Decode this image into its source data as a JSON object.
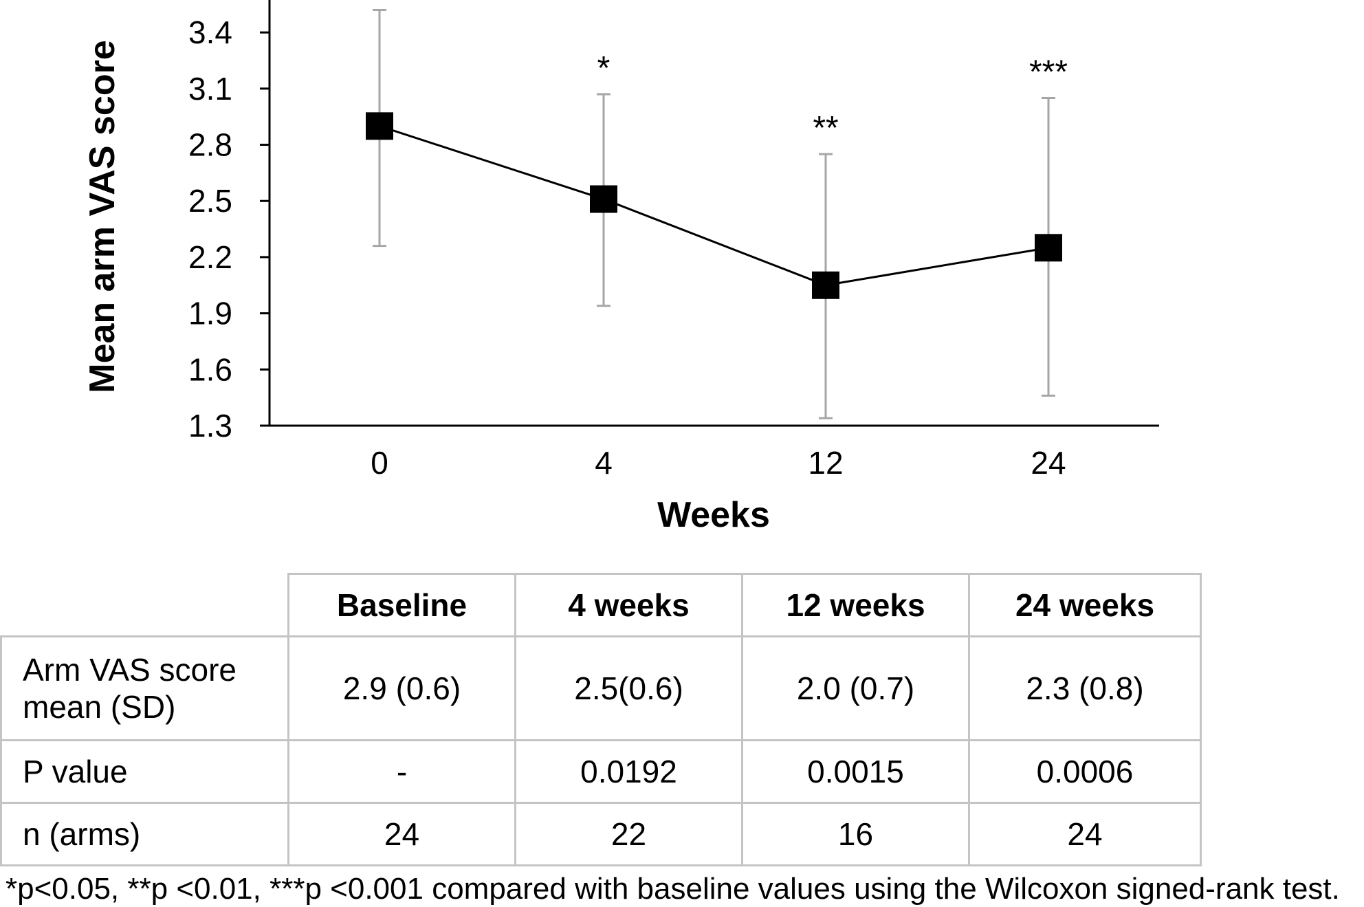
{
  "chart_data": {
    "type": "line",
    "title": "",
    "xlabel": "Weeks",
    "ylabel": "Mean arm VAS score",
    "categories": [
      "0",
      "4",
      "12",
      "24"
    ],
    "ylim": [
      1.3,
      3.55
    ],
    "yticks": [
      "1.3",
      "1.6",
      "1.9",
      "2.2",
      "2.5",
      "2.8",
      "3.1",
      "3.4"
    ],
    "series": [
      {
        "values": [
          2.9,
          2.51,
          2.05,
          2.25
        ],
        "error_low": [
          2.26,
          1.94,
          1.34,
          1.46
        ],
        "error_high": [
          3.52,
          3.07,
          2.75,
          3.05
        ],
        "annotations": [
          "",
          "*",
          "**",
          "***"
        ]
      }
    ],
    "grid": false,
    "colors": {
      "line": "#000000",
      "marker": "#000000",
      "error_bar": "#a6a6a6"
    }
  },
  "table": {
    "headers": [
      "",
      "Baseline",
      "4 weeks",
      "12 weeks",
      "24 weeks"
    ],
    "rows": [
      {
        "label_line1": "Arm VAS score",
        "label_line2": "mean (SD)",
        "cells": [
          "2.9 (0.6)",
          "2.5(0.6)",
          "2.0 (0.7)",
          "2.3 (0.8)"
        ]
      },
      {
        "label_line1": "P value",
        "label_line2": "",
        "cells": [
          "-",
          "0.0192",
          "0.0015",
          "0.0006"
        ]
      },
      {
        "label_line1": "n (arms)",
        "label_line2": "",
        "cells": [
          "24",
          "22",
          "16",
          "24"
        ]
      }
    ]
  },
  "footnote": "*p<0.05, **p <0.01, ***p <0.001 compared with baseline values using the Wilcoxon signed-rank test."
}
